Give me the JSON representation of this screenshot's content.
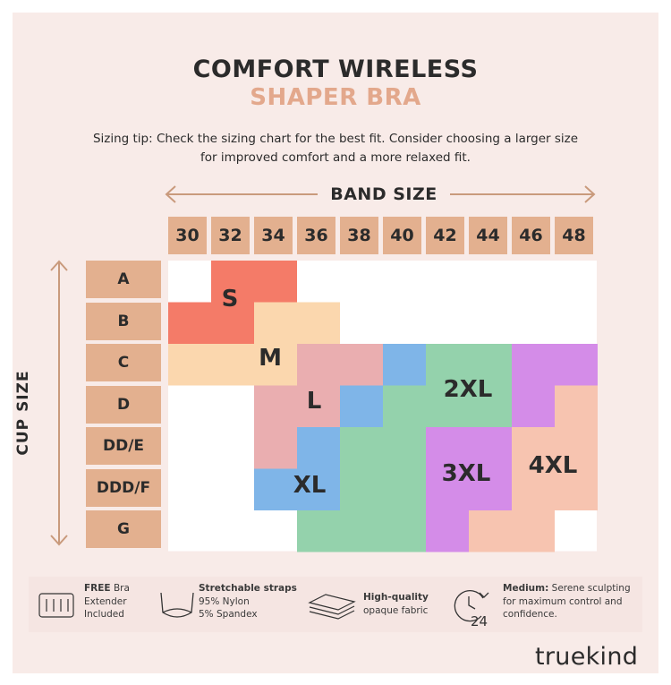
{
  "title": {
    "line1": "COMFORT WIRELESS",
    "line2": "SHAPER BRA"
  },
  "tip": {
    "line1": "Sizing tip: Check the sizing chart for the best fit. Consider choosing a larger size",
    "line2": "for improved comfort and a more relaxed fit."
  },
  "band_label": "BAND SIZE",
  "cup_label": "CUP SIZE",
  "bands": [
    "30",
    "32",
    "34",
    "36",
    "38",
    "40",
    "42",
    "44",
    "46",
    "48"
  ],
  "cups": [
    "A",
    "B",
    "C",
    "D",
    "DD/E",
    "DDD/F",
    "G"
  ],
  "sizes": [
    {
      "label": "S",
      "color": "#f47b68",
      "cells": [
        [
          1,
          0
        ],
        [
          2,
          0
        ],
        [
          0,
          1
        ],
        [
          1,
          1
        ]
      ]
    },
    {
      "label": "M",
      "color": "#fbd7ae",
      "cells": [
        [
          2,
          1
        ],
        [
          3,
          1
        ],
        [
          0,
          2
        ],
        [
          1,
          2
        ],
        [
          2,
          2
        ]
      ]
    },
    {
      "label": "L",
      "color": "#eaaeb0",
      "cells": [
        [
          3,
          2
        ],
        [
          4,
          2
        ],
        [
          2,
          3
        ],
        [
          3,
          3
        ],
        [
          2,
          4
        ],
        [
          3,
          4
        ]
      ]
    },
    {
      "label": "XL",
      "color": "#7fb5e8",
      "cells": [
        [
          5,
          2
        ],
        [
          4,
          3
        ],
        [
          3,
          4
        ],
        [
          2,
          5
        ],
        [
          3,
          5
        ]
      ]
    },
    {
      "label": "2XL",
      "color": "#94d2ac",
      "cells": [
        [
          6,
          2
        ],
        [
          7,
          2
        ],
        [
          5,
          3
        ],
        [
          6,
          3
        ],
        [
          7,
          3
        ],
        [
          4,
          4
        ],
        [
          5,
          4
        ],
        [
          4,
          5
        ],
        [
          5,
          5
        ],
        [
          3,
          6
        ],
        [
          4,
          6
        ],
        [
          5,
          6
        ]
      ]
    },
    {
      "label": "3XL",
      "color": "#d48ce8",
      "cells": [
        [
          8,
          2
        ],
        [
          9,
          2
        ],
        [
          8,
          3
        ],
        [
          6,
          4
        ],
        [
          7,
          4
        ],
        [
          6,
          5
        ],
        [
          7,
          5
        ],
        [
          6,
          6
        ]
      ]
    },
    {
      "label": "4XL",
      "color": "#f7c4b0",
      "cells": [
        [
          9,
          3
        ],
        [
          8,
          4
        ],
        [
          9,
          4
        ],
        [
          8,
          5
        ],
        [
          9,
          5
        ],
        [
          7,
          6
        ],
        [
          8,
          6
        ]
      ]
    }
  ],
  "features": [
    {
      "icon": "bra-extender-icon",
      "bold": "FREE",
      "text": " Bra Extender Included"
    },
    {
      "icon": "bra-straps-icon",
      "bold": "Stretchable straps",
      "lines": [
        "95% Nylon",
        "5% Spandex"
      ]
    },
    {
      "icon": "fabric-layers-icon",
      "bold": "High-quality",
      "lines": [
        "opaque fabric"
      ]
    },
    {
      "icon": "clock-24-icon",
      "bold": "Medium:",
      "text": " Serene sculpting",
      "lines": [
        "for maximum control and",
        "confidence."
      ]
    }
  ],
  "brand": "truekind"
}
